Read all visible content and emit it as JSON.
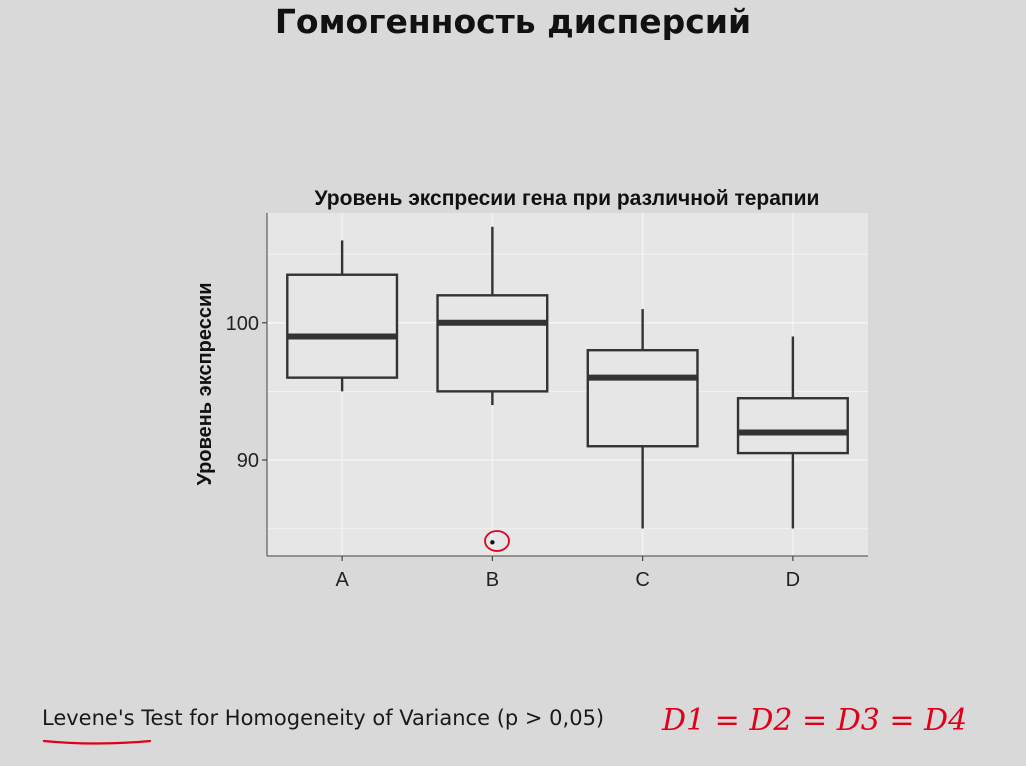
{
  "slide": {
    "title": "Гомогенность дисперсий",
    "footer": "Levene's Test for Homogeneity of Variance (p > 0,05)",
    "handwritten_note": "D1 = D2 = D3 = D4",
    "annotation_color": "#e0001a"
  },
  "chart_data": {
    "type": "boxplot",
    "title": "Уровень экспресии гена при различной терапии",
    "xlabel": "",
    "ylabel": "Уровень экспрессии",
    "categories": [
      "A",
      "B",
      "C",
      "D"
    ],
    "ylim": [
      83,
      108
    ],
    "yticks": [
      90,
      100
    ],
    "grid": true,
    "boxes": [
      {
        "category": "A",
        "whisker_low": 95,
        "q1": 96,
        "median": 99,
        "q3": 103.5,
        "whisker_high": 106,
        "outliers": []
      },
      {
        "category": "B",
        "whisker_low": 94,
        "q1": 95,
        "median": 100,
        "q3": 102,
        "whisker_high": 107,
        "outliers": [
          84
        ]
      },
      {
        "category": "C",
        "whisker_low": 85,
        "q1": 91,
        "median": 96,
        "q3": 98,
        "whisker_high": 101,
        "outliers": []
      },
      {
        "category": "D",
        "whisker_low": 85,
        "q1": 90.5,
        "median": 92,
        "q3": 94.5,
        "whisker_high": 99,
        "outliers": []
      }
    ],
    "colors": {
      "panel": "#e6e6e6",
      "box_line": "#333333",
      "grid": "#f5f5f5"
    }
  }
}
